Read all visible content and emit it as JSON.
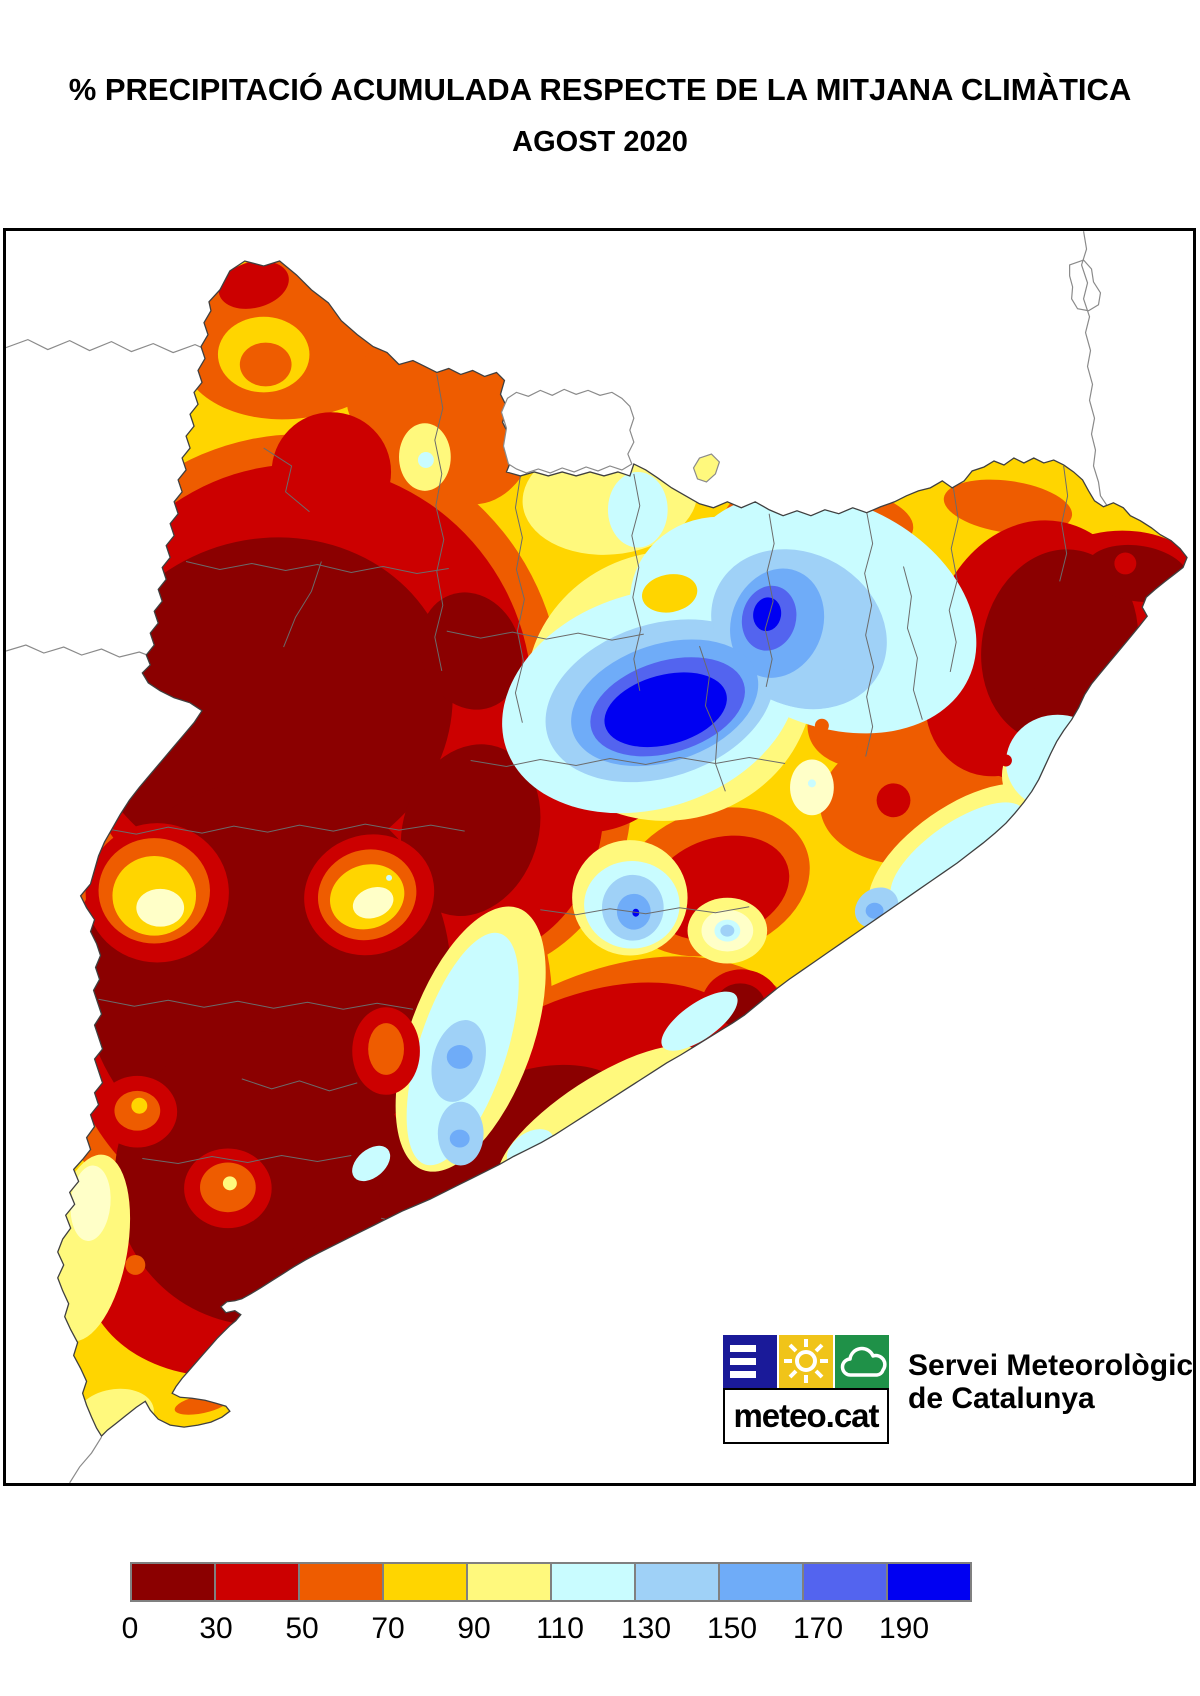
{
  "title": {
    "line1": "% PRECIPITACIÓ ACUMULADA RESPECTE DE LA MITJANA CLIMÀTICA",
    "line2": "AGOST 2020"
  },
  "legend": {
    "labels": [
      "0",
      "30",
      "50",
      "70",
      "90",
      "110",
      "130",
      "150",
      "170",
      "190"
    ],
    "colors": [
      "#8B0000",
      "#CC0000",
      "#EE5C00",
      "#FFD500",
      "#FFF97D",
      "#C9FCFF",
      "#9FD1F7",
      "#6FACF8",
      "#5364EF",
      "#0000F2"
    ]
  },
  "logo": {
    "brand": "meteo.cat",
    "org_line1": "Servei Meteorològic",
    "org_line2": "de Catalunya",
    "square_blue": "#1A1A99",
    "square_yellow": "#F0C419",
    "square_green": "#1F9148"
  },
  "map": {
    "palette": {
      "0-30": "#8B0000",
      "30-50": "#CC0000",
      "50-70": "#EE5C00",
      "70-90": "#FFD500",
      "90-110": "#FFF97D",
      "110-130": "#C9FCFF",
      "130-150": "#9FD1F7",
      "150-170": "#6FACF8",
      "170-190": "#5364EF",
      "190+": "#0000F2"
    },
    "border_color": "#3f3f3f",
    "comarca_border_color": "#6b6b6b",
    "sea_color": "#ffffff"
  }
}
